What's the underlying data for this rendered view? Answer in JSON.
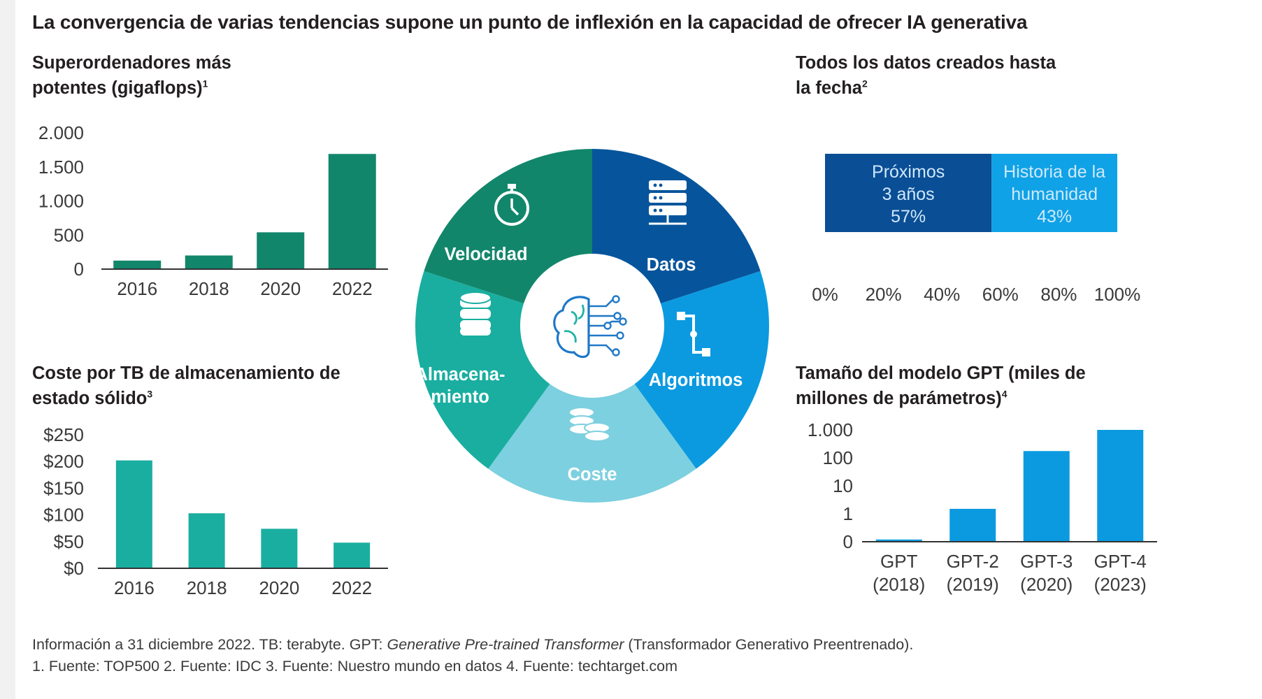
{
  "title": "La convergencia de varias tendencias supone un punto de inflexión en la capacidad de ofrecer IA generativa",
  "colors": {
    "green_dark": "#12866b",
    "teal": "#19aea0",
    "teal_light": "#7dd0df",
    "blue_dark": "#06559c",
    "blue": "#0b9ae0",
    "blue_mid": "#0a4e95",
    "blue_light": "#10a2e6"
  },
  "center_icon": "brain-circuit-icon",
  "wheel": {
    "segments": [
      {
        "label_lines": [
          "Velocidad"
        ],
        "icon": "stopwatch-icon",
        "color": "#12866b"
      },
      {
        "label_lines": [
          "Datos"
        ],
        "icon": "server-icon",
        "color": "#06559c"
      },
      {
        "label_lines": [
          "Algoritmos"
        ],
        "icon": "flowchart-icon",
        "color": "#0b9ae0"
      },
      {
        "label_lines": [
          "Coste"
        ],
        "icon": "coins-icon",
        "color": "#7dd0df"
      },
      {
        "label_lines": [
          "Almacena-",
          "miento"
        ],
        "icon": "database-icon",
        "color": "#19aea0"
      }
    ]
  },
  "footnotes": {
    "line1_prefix": "Información a 31 diciembre 2022. TB: terabyte. GPT: ",
    "line1_italic": "Generative Pre-trained Transformer",
    "line1_suffix": " (Transformador Generativo Preentrenado).",
    "line2": "1. Fuente: TOP500 2. Fuente: IDC 3. Fuente: Nuestro mundo en datos 4. Fuente: techtarget.com"
  },
  "chart_data": [
    {
      "id": "supercomputers",
      "type": "bar",
      "title_lines": [
        "Superordenadores más",
        "potentes (gigaflops)"
      ],
      "title_sup": "1",
      "categories": [
        "2016",
        "2018",
        "2020",
        "2022"
      ],
      "values": [
        125,
        200,
        540,
        1690
      ],
      "ylim": [
        0,
        2000
      ],
      "yticks": [
        0,
        500,
        1000,
        1500,
        2000
      ],
      "ytick_labels": [
        "0",
        "500",
        "1.000",
        "1.500",
        "2.000"
      ],
      "color": "#12866b"
    },
    {
      "id": "data-created",
      "type": "stacked-bar-horizontal",
      "title_lines": [
        "Todos los datos creados hasta",
        "la fecha"
      ],
      "title_sup": "2",
      "segments": [
        {
          "label_lines": [
            "Próximos",
            "3 años",
            "57%"
          ],
          "value": 57,
          "color": "#0a4e95"
        },
        {
          "label_lines": [
            "Historia de la",
            "humanidad",
            "43%"
          ],
          "value": 43,
          "color": "#10a2e6"
        }
      ],
      "xlim": [
        0,
        100
      ],
      "xticks": [
        0,
        20,
        40,
        60,
        80,
        100
      ],
      "xtick_labels": [
        "0%",
        "20%",
        "40%",
        "60%",
        "80%",
        "100%"
      ]
    },
    {
      "id": "ssd-cost",
      "type": "bar",
      "title_lines": [
        "Coste por TB de almacenamiento de",
        "estado sólido"
      ],
      "title_sup": "3",
      "categories": [
        "2016",
        "2018",
        "2020",
        "2022"
      ],
      "values": [
        202,
        103,
        74,
        48
      ],
      "ylim": [
        0,
        250
      ],
      "yticks": [
        0,
        50,
        100,
        150,
        200,
        250
      ],
      "ytick_labels": [
        "$0",
        "$50",
        "$100",
        "$150",
        "$200",
        "$250"
      ],
      "color": "#19aea0"
    },
    {
      "id": "gpt-size",
      "type": "bar",
      "scale": "log",
      "title_lines": [
        "Tamaño del modelo GPT (miles de",
        "millones de parámetros)"
      ],
      "title_sup": "4",
      "categories": [
        [
          "GPT",
          "(2018)"
        ],
        [
          "GPT-2",
          "(2019)"
        ],
        [
          "GPT-3",
          "(2020)"
        ],
        [
          "GPT-4",
          "(2023)"
        ]
      ],
      "values": [
        0.12,
        1.5,
        175,
        1000
      ],
      "ytick_values": [
        0,
        1,
        10,
        100,
        1000
      ],
      "ytick_labels": [
        "0",
        "1",
        "10",
        "100",
        "1.000"
      ],
      "color": "#0b9ae0"
    }
  ]
}
